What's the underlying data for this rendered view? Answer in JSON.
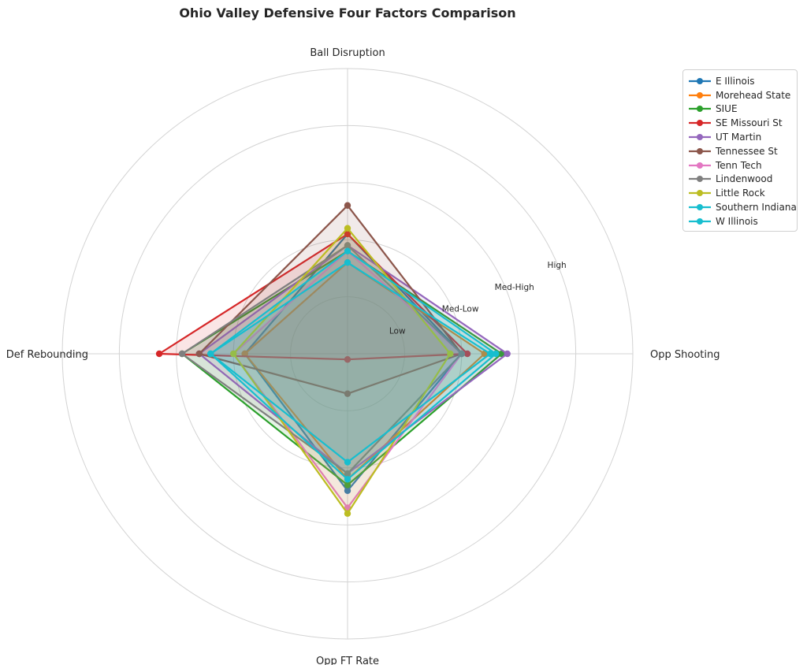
{
  "chart_data": {
    "type": "radar",
    "title": "Ohio Valley Defensive Four Factors Comparison",
    "axes": [
      "Ball Disruption",
      "Opp Shooting",
      "Opp FT Rate",
      "Def Rebounding"
    ],
    "rings": [
      "Low",
      "Med-Low",
      "Med-High",
      "High"
    ],
    "rlim": [
      0,
      5
    ],
    "legend_position": "upper-right, outside",
    "grid": true,
    "series": [
      {
        "name": "E Illinois",
        "color": "#1f77b4",
        "values": [
          2.1,
          2.0,
          2.4,
          1.8
        ]
      },
      {
        "name": "Morehead State",
        "color": "#ff7f0e",
        "values": [
          1.6,
          2.4,
          2.2,
          1.8
        ]
      },
      {
        "name": "SIUE",
        "color": "#2ca02c",
        "values": [
          1.8,
          2.7,
          2.3,
          2.9
        ]
      },
      {
        "name": "SE Missouri St",
        "color": "#d62728",
        "values": [
          2.1,
          2.1,
          0.1,
          3.3
        ]
      },
      {
        "name": "UT Martin",
        "color": "#9467bd",
        "values": [
          1.9,
          2.8,
          2.1,
          2.6
        ]
      },
      {
        "name": "Tennessee St",
        "color": "#8c564b",
        "values": [
          2.6,
          2.0,
          0.7,
          2.6
        ]
      },
      {
        "name": "Tenn Tech",
        "color": "#e377c2",
        "values": [
          1.8,
          2.0,
          2.7,
          2.0
        ]
      },
      {
        "name": "Lindenwood",
        "color": "#7f7f7f",
        "values": [
          1.9,
          2.0,
          2.1,
          2.9
        ]
      },
      {
        "name": "Little Rock",
        "color": "#bcbd22",
        "values": [
          2.2,
          1.8,
          2.8,
          2.0
        ]
      },
      {
        "name": "Southern Indiana",
        "color": "#17becf",
        "values": [
          1.8,
          2.6,
          2.2,
          2.4
        ]
      },
      {
        "name": "W Illinois",
        "color": "#17becf",
        "values": [
          1.6,
          2.5,
          1.9,
          2.4
        ]
      }
    ]
  }
}
